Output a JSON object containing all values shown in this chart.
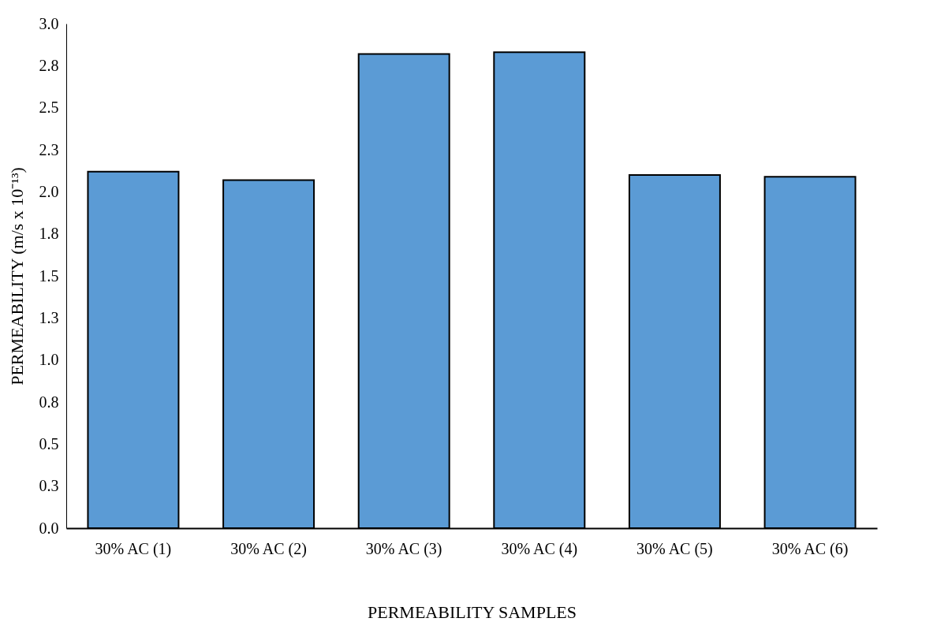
{
  "chart_data": {
    "type": "bar",
    "xlabel": "PERMEABILITY  SAMPLES",
    "ylabel": "PERMEABILITY  (m/s x 10⁻¹³)",
    "categories": [
      "30% AC (1)",
      "30% AC (2)",
      "30% AC (3)",
      "30% AC (4)",
      "30% AC (5)",
      "30% AC (6)"
    ],
    "values": [
      2.12,
      2.07,
      2.82,
      2.83,
      2.1,
      2.09
    ],
    "color": "#5b9bd5",
    "ylim": [
      0,
      3
    ],
    "yticks": [
      {
        "value": 0,
        "label": "0.0"
      },
      {
        "value": 0.25,
        "label": "0.3"
      },
      {
        "value": 0.5,
        "label": "0.5"
      },
      {
        "value": 0.75,
        "label": "0.8"
      },
      {
        "value": 1,
        "label": "1.0"
      },
      {
        "value": 1.25,
        "label": "1.3"
      },
      {
        "value": 1.5,
        "label": "1.5"
      },
      {
        "value": 1.75,
        "label": "1.8"
      },
      {
        "value": 2,
        "label": "2.0"
      },
      {
        "value": 2.25,
        "label": "2.3"
      },
      {
        "value": 2.5,
        "label": "2.5"
      },
      {
        "value": 2.75,
        "label": "2.8"
      },
      {
        "value": 3,
        "label": "3.0"
      }
    ],
    "grid": false
  }
}
